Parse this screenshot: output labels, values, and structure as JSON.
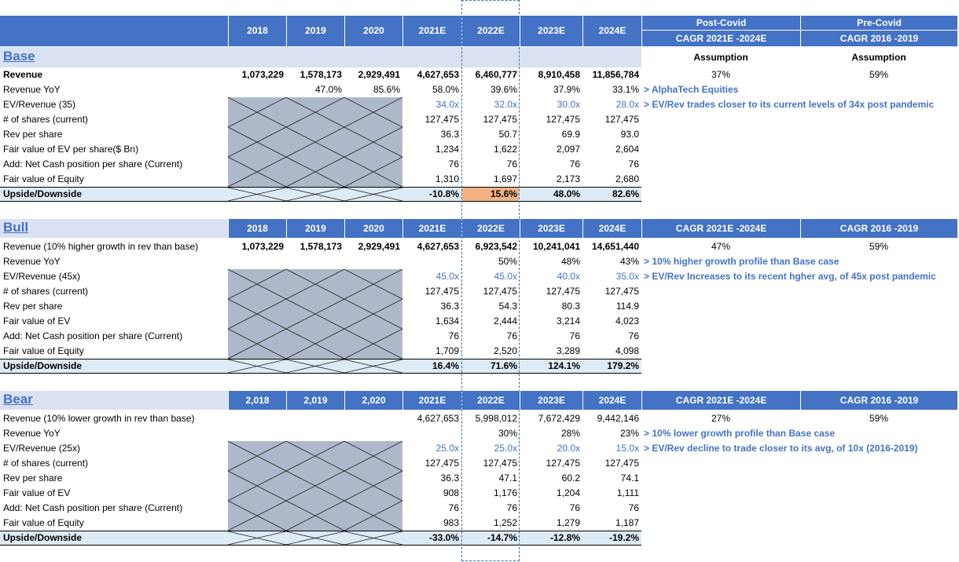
{
  "years": [
    "2018",
    "2019",
    "2020",
    "2021E",
    "2022E",
    "2023E",
    "2024E"
  ],
  "years_bear": [
    "2,018",
    "2,019",
    "2,020",
    "2021E",
    "2022E",
    "2023E",
    "2024E"
  ],
  "cagr": {
    "post_covid": "Post-Covid",
    "pre_covid": "Pre-Covid",
    "post_label": "CAGR 2021E -2024E",
    "pre_label": "CAGR 2016 -2019",
    "assumption": "Assumption"
  },
  "base": {
    "title": "Base",
    "rows": [
      {
        "label": "Revenue",
        "bold": true,
        "vals": [
          "1,073,229",
          "1,578,173",
          "2,929,491",
          "4,627,653",
          "6,460,777",
          "8,910,458",
          "11,856,784"
        ],
        "c1": "37%",
        "c2": "59%"
      },
      {
        "label": "Revenue YoY",
        "vals": [
          "",
          "47.0%",
          "85.6%",
          "58.0%",
          "39.6%",
          "37.9%",
          "33.1%"
        ],
        "note": "> AlphaTech Equities"
      },
      {
        "label": "EV/Revenue (35)",
        "blue": true,
        "vals": [
          "",
          "",
          "",
          "34.0x",
          "32.0x",
          "30.0x",
          "28.0x"
        ],
        "note": "> EV/Rev trades closer to its current levels of 34x post pandemic"
      },
      {
        "label": "# of shares (current)",
        "vals": [
          "",
          "",
          "",
          "127,475",
          "127,475",
          "127,475",
          "127,475"
        ]
      },
      {
        "label": "Rev per share",
        "vals": [
          "",
          "",
          "",
          "36.3",
          "50.7",
          "69.9",
          "93.0"
        ]
      },
      {
        "label": "Fair value of EV per share($ Bn)",
        "vals": [
          "",
          "",
          "",
          "1,234",
          "1,622",
          "2,097",
          "2,604"
        ]
      },
      {
        "label": "Add: Net Cash position per share (Current)",
        "vals": [
          "",
          "",
          "",
          "76",
          "76",
          "76",
          "76"
        ]
      },
      {
        "label": "Fair value of Equity",
        "vals": [
          "",
          "",
          "",
          "1,310",
          "1,697",
          "2,173",
          "2,680"
        ]
      },
      {
        "label": "Upside/Downside",
        "up": true,
        "vals": [
          "",
          "",
          "",
          "-10.8%",
          "15.6%",
          "48.0%",
          "82.6%"
        ]
      }
    ]
  },
  "bull": {
    "title": "Bull",
    "rows": [
      {
        "label": "Revenue (10% higher growth in rev than base)",
        "vals": [
          "1,073,229",
          "1,578,173",
          "2,929,491",
          "4,627,653",
          "6,923,542",
          "10,241,041",
          "14,651,440"
        ],
        "boldvals": true,
        "c1": "47%",
        "c2": "59%"
      },
      {
        "label": "Revenue YoY",
        "vals": [
          "",
          "",
          "",
          "",
          "50%",
          "48%",
          "43%"
        ],
        "note": "> 10% higher growth profile than Base case"
      },
      {
        "label": "EV/Revenue (45x)",
        "blue": true,
        "vals": [
          "",
          "",
          "",
          "45.0x",
          "45.0x",
          "40.0x",
          "35.0x"
        ],
        "note": "> EV/Rev Increases to its recent hgher avg, of 45x post pandemic"
      },
      {
        "label": "# of shares (current)",
        "vals": [
          "",
          "",
          "",
          "127,475",
          "127,475",
          "127,475",
          "127,475"
        ]
      },
      {
        "label": "Rev per share",
        "vals": [
          "",
          "",
          "",
          "36.3",
          "54.3",
          "80.3",
          "114.9"
        ]
      },
      {
        "label": "Fair value of EV",
        "vals": [
          "",
          "",
          "",
          "1,634",
          "2,444",
          "3,214",
          "4,023"
        ]
      },
      {
        "label": "Add: Net Cash position per share (Current)",
        "vals": [
          "",
          "",
          "",
          "76",
          "76",
          "76",
          "76"
        ]
      },
      {
        "label": "Fair value of Equity",
        "vals": [
          "",
          "",
          "",
          "1,709",
          "2,520",
          "3,289",
          "4,098"
        ]
      },
      {
        "label": "Upside/Downside",
        "up": true,
        "vals": [
          "",
          "",
          "",
          "16.4%",
          "71.6%",
          "124.1%",
          "179.2%"
        ]
      }
    ]
  },
  "bear": {
    "title": "Bear",
    "rows": [
      {
        "label": "Revenue (10% lower growth in rev than base)",
        "vals": [
          "",
          "",
          "",
          "4,627,653",
          "5,998,012",
          "7,672,429",
          "9,442,146"
        ],
        "c1": "27%",
        "c2": "59%"
      },
      {
        "label": "Revenue YoY",
        "vals": [
          "",
          "",
          "",
          "",
          "30%",
          "28%",
          "23%"
        ],
        "note": "> 10% lower growth profile than Base case"
      },
      {
        "label": "EV/Revenue (25x)",
        "blue": true,
        "vals": [
          "",
          "",
          "",
          "25.0x",
          "25.0x",
          "20.0x",
          "15.0x"
        ],
        "note": "> EV/Rev decline to trade closer to its avg, of 10x (2016-2019)"
      },
      {
        "label": "# of shares (current)",
        "vals": [
          "",
          "",
          "",
          "127,475",
          "127,475",
          "127,475",
          "127,475"
        ]
      },
      {
        "label": "Rev per share",
        "vals": [
          "",
          "",
          "",
          "36.3",
          "47.1",
          "60.2",
          "74.1"
        ]
      },
      {
        "label": "Fair value of EV",
        "vals": [
          "",
          "",
          "",
          "908",
          "1,176",
          "1,204",
          "1,111"
        ]
      },
      {
        "label": "Add: Net Cash position per share (Current)",
        "vals": [
          "",
          "",
          "",
          "76",
          "76",
          "76",
          "76"
        ]
      },
      {
        "label": "Fair value of Equity",
        "vals": [
          "",
          "",
          "",
          "983",
          "1,252",
          "1,279",
          "1,187"
        ]
      },
      {
        "label": "Upside/Downside",
        "up": true,
        "vals": [
          "",
          "",
          "",
          "-33.0%",
          "-14.7%",
          "-12.8%",
          "-19.2%"
        ]
      }
    ]
  },
  "colors": {
    "header": "#4472c4",
    "band": "#d9e1f2",
    "upband": "#ddebf7",
    "highlight": "#f4b183",
    "hatch": "#adb9ca"
  }
}
